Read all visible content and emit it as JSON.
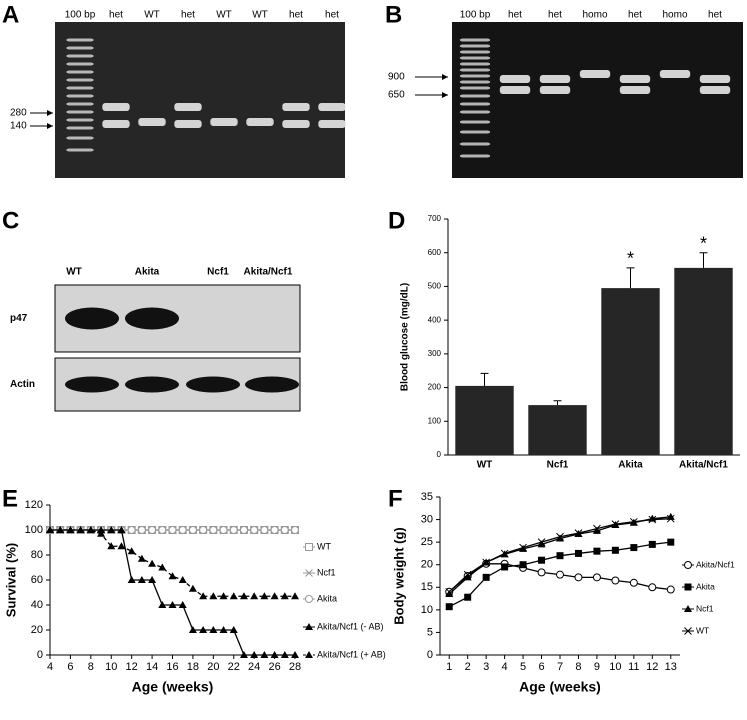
{
  "gels": [
    {
      "panel": "A",
      "lanes": [
        "100 bp",
        "het",
        "WT",
        "het",
        "WT",
        "WT",
        "het",
        "het"
      ],
      "marker_labels": [
        "280",
        "140"
      ]
    },
    {
      "panel": "B",
      "lanes": [
        "100 bp",
        "het",
        "het",
        "homo",
        "het",
        "homo",
        "het"
      ],
      "marker_labels": [
        "900",
        "650"
      ]
    }
  ],
  "blot": {
    "panel": "C",
    "lanes": [
      "WT",
      "Akita",
      "Ncf1",
      "Akita/Ncf1"
    ],
    "rows": [
      "p47",
      "Actin"
    ]
  },
  "chart_data": [
    {
      "type": "bar",
      "panel": "D",
      "y_label": "Blood glucose (mg/dL)",
      "categories": [
        "WT",
        "Ncf1",
        "Akita",
        "Akita/Ncf1"
      ],
      "values": [
        205,
        148,
        495,
        555
      ],
      "errors": [
        37,
        13,
        60,
        45
      ],
      "significance": [
        null,
        null,
        "*",
        "*"
      ],
      "color": "#262626",
      "ylim": [
        0,
        700
      ],
      "yticks": [
        0,
        100,
        200,
        300,
        400,
        500,
        600,
        700
      ]
    },
    {
      "type": "line",
      "panel": "E",
      "x_label": "Age (weeks)",
      "y_label": "Survival (%)",
      "x": [
        4,
        5,
        6,
        7,
        8,
        9,
        10,
        11,
        12,
        13,
        14,
        15,
        16,
        17,
        18,
        19,
        20,
        21,
        22,
        23,
        24,
        25,
        26,
        27,
        28
      ],
      "xlim": [
        4,
        28
      ],
      "xticks": [
        4,
        6,
        8,
        10,
        12,
        14,
        16,
        18,
        20,
        22,
        24,
        26,
        28
      ],
      "ylim": [
        0,
        120
      ],
      "yticks": [
        0,
        20,
        40,
        60,
        80,
        100,
        120
      ],
      "legend": "right",
      "series": [
        {
          "name": "WT",
          "color": "#999999",
          "marker": "square-open",
          "line_style": "solid",
          "values": [
            100,
            100,
            100,
            100,
            100,
            100,
            100,
            100,
            100,
            100,
            100,
            100,
            100,
            100,
            100,
            100,
            100,
            100,
            100,
            100,
            100,
            100,
            100,
            100,
            100
          ]
        },
        {
          "name": "Ncf1",
          "color": "#999999",
          "marker": "x",
          "line_style": "solid",
          "values": [
            100,
            100,
            100,
            100,
            100,
            100,
            100,
            100,
            100,
            100,
            100,
            100,
            100,
            100,
            100,
            100,
            100,
            100,
            100,
            100,
            100,
            100,
            100,
            100,
            100
          ]
        },
        {
          "name": "Akita",
          "color": "#999999",
          "marker": "circle-open",
          "line_style": "solid",
          "values": [
            100,
            100,
            100,
            100,
            100,
            100,
            100,
            100,
            100,
            100,
            100,
            100,
            100,
            100,
            100,
            100,
            100,
            100,
            100,
            100,
            100,
            100,
            100,
            100,
            100
          ]
        },
        {
          "name": "Akita/Ncf1 (- AB)",
          "color": "#000000",
          "marker": "triangle",
          "line_style": "solid",
          "values": [
            100,
            100,
            100,
            100,
            100,
            100,
            100,
            100,
            60,
            60,
            60,
            40,
            40,
            40,
            20,
            20,
            20,
            20,
            20,
            0,
            0,
            0,
            0,
            0,
            0
          ]
        },
        {
          "name": "Akita/Ncf1 (+ AB)",
          "color": "#000000",
          "marker": "triangle",
          "line_style": "dashed",
          "values": [
            100,
            100,
            100,
            100,
            100,
            97,
            87,
            87,
            83,
            77,
            73,
            70,
            63,
            60,
            53,
            47,
            47,
            47,
            47,
            47,
            47,
            47,
            47,
            47,
            47
          ]
        }
      ]
    },
    {
      "type": "line",
      "panel": "F",
      "x_label": "Age (weeks)",
      "y_label": "Body weight (g)",
      "x": [
        1,
        2,
        3,
        4,
        5,
        6,
        7,
        8,
        9,
        10,
        11,
        12,
        13
      ],
      "xlim": [
        0.5,
        13.5
      ],
      "xticks": [
        1,
        2,
        3,
        4,
        5,
        6,
        7,
        8,
        9,
        10,
        11,
        12,
        13
      ],
      "ylim": [
        0,
        35
      ],
      "yticks": [
        0,
        5,
        10,
        15,
        20,
        25,
        30,
        35
      ],
      "legend": "right",
      "series": [
        {
          "name": "Akita/Ncf1",
          "color": "#000000",
          "marker": "circle-open",
          "line_style": "solid",
          "values": [
            14,
            17.5,
            20.2,
            20.2,
            19.3,
            18.3,
            17.8,
            17.2,
            17.2,
            16.5,
            16,
            15,
            14.5
          ]
        },
        {
          "name": "Akita",
          "color": "#000000",
          "marker": "square",
          "line_style": "solid",
          "values": [
            10.7,
            12.8,
            17.2,
            19.5,
            20,
            21,
            22,
            22.5,
            23,
            23.2,
            23.8,
            24.5,
            25
          ]
        },
        {
          "name": "Ncf1",
          "color": "#000000",
          "marker": "triangle",
          "line_style": "solid",
          "values": [
            13.5,
            17.2,
            20.5,
            22.3,
            23.5,
            24.5,
            25.8,
            26.8,
            27.5,
            28.8,
            29.3,
            30.2,
            30.6
          ]
        },
        {
          "name": "WT",
          "color": "#000000",
          "marker": "x",
          "line_style": "solid",
          "values": [
            14,
            17.8,
            20.5,
            22.5,
            23.8,
            25,
            26.2,
            27,
            28,
            29,
            29.5,
            30,
            30.2
          ]
        }
      ]
    }
  ]
}
